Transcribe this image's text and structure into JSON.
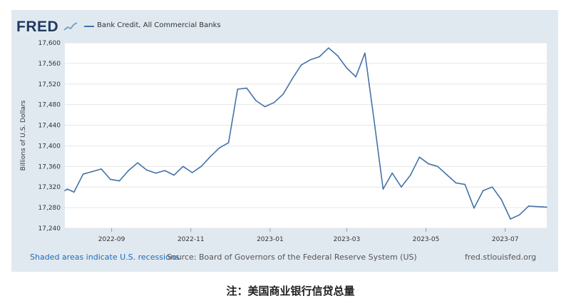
{
  "header": {
    "logo_text": "FRED",
    "legend_label": "Bank Credit, All Commercial Banks",
    "series_color": "#4572a7"
  },
  "footer": {
    "recessions_link": "Shaded areas indicate U.S. recessions",
    "source": "Source: Board of Governors of the Federal Reserve System (US)",
    "site": "fred.stlouisfed.org"
  },
  "caption": "注：美国商业银行信贷总量",
  "chart_data": {
    "type": "line",
    "title": "",
    "xlabel": "",
    "ylabel": "Billions of U.S. Dollars",
    "ylim": [
      17240,
      17600
    ],
    "yticks": [
      17240,
      17280,
      17320,
      17360,
      17400,
      17440,
      17480,
      17520,
      17560,
      17600
    ],
    "ytick_labels": [
      "17,240",
      "17,280",
      "17,320",
      "17,360",
      "17,400",
      "17,440",
      "17,480",
      "17,520",
      "17,560",
      "17,600"
    ],
    "xlim": [
      "2022-07-27",
      "2023-08-02"
    ],
    "xticks": [
      "2022-09-01",
      "2022-11-01",
      "2023-01-01",
      "2023-03-01",
      "2023-05-01",
      "2023-07-01"
    ],
    "xtick_labels": [
      "2022-09",
      "2022-11",
      "2023-01",
      "2023-03",
      "2023-05",
      "2023-07"
    ],
    "grid": "horizontal",
    "legend_position": "top-left",
    "series": [
      {
        "name": "Bank Credit, All Commercial Banks",
        "color": "#4572a7",
        "points": [
          [
            "2022-07-27",
            17313
          ],
          [
            "2022-07-29",
            17316
          ],
          [
            "2022-08-03",
            17310
          ],
          [
            "2022-08-10",
            17345
          ],
          [
            "2022-08-17",
            17350
          ],
          [
            "2022-08-24",
            17355
          ],
          [
            "2022-08-31",
            17335
          ],
          [
            "2022-09-07",
            17332
          ],
          [
            "2022-09-14",
            17352
          ],
          [
            "2022-09-21",
            17367
          ],
          [
            "2022-09-28",
            17353
          ],
          [
            "2022-10-05",
            17347
          ],
          [
            "2022-10-12",
            17352
          ],
          [
            "2022-10-19",
            17343
          ],
          [
            "2022-10-26",
            17360
          ],
          [
            "2022-11-02",
            17348
          ],
          [
            "2022-11-09",
            17360
          ],
          [
            "2022-11-16",
            17379
          ],
          [
            "2022-11-23",
            17396
          ],
          [
            "2022-11-30",
            17406
          ],
          [
            "2022-12-07",
            17510
          ],
          [
            "2022-12-14",
            17512
          ],
          [
            "2022-12-21",
            17488
          ],
          [
            "2022-12-28",
            17476
          ],
          [
            "2023-01-04",
            17484
          ],
          [
            "2023-01-11",
            17500
          ],
          [
            "2023-01-18",
            17530
          ],
          [
            "2023-01-25",
            17557
          ],
          [
            "2023-02-01",
            17567
          ],
          [
            "2023-02-08",
            17573
          ],
          [
            "2023-02-15",
            17590
          ],
          [
            "2023-02-22",
            17575
          ],
          [
            "2023-03-01",
            17551
          ],
          [
            "2023-03-08",
            17534
          ],
          [
            "2023-03-15",
            17580
          ],
          [
            "2023-03-22",
            17450
          ],
          [
            "2023-03-29",
            17316
          ],
          [
            "2023-04-05",
            17347
          ],
          [
            "2023-04-12",
            17320
          ],
          [
            "2023-04-19",
            17343
          ],
          [
            "2023-04-26",
            17378
          ],
          [
            "2023-05-03",
            17365
          ],
          [
            "2023-05-10",
            17360
          ],
          [
            "2023-05-17",
            17344
          ],
          [
            "2023-05-24",
            17328
          ],
          [
            "2023-05-31",
            17325
          ],
          [
            "2023-06-07",
            17279
          ],
          [
            "2023-06-14",
            17313
          ],
          [
            "2023-06-21",
            17320
          ],
          [
            "2023-06-28",
            17296
          ],
          [
            "2023-07-05",
            17258
          ],
          [
            "2023-07-12",
            17266
          ],
          [
            "2023-07-19",
            17283
          ],
          [
            "2023-07-26",
            17282
          ],
          [
            "2023-08-02",
            17281
          ]
        ]
      }
    ]
  }
}
